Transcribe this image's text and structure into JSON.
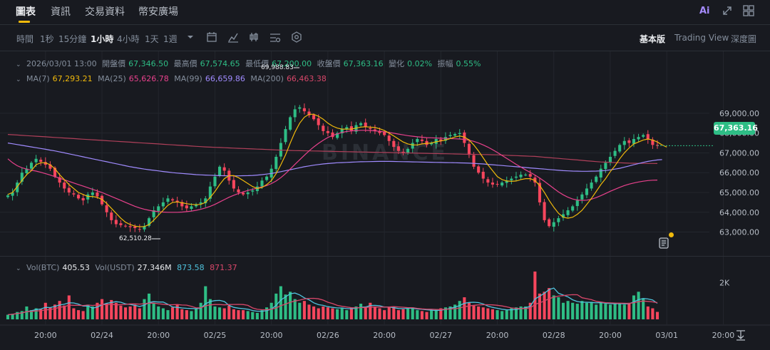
{
  "tabs": [
    {
      "label": "圖表",
      "active": true
    },
    {
      "label": "資訊",
      "active": false
    },
    {
      "label": "交易資料",
      "active": false
    },
    {
      "label": "幣安廣場",
      "active": false
    }
  ],
  "header_icons": {
    "ai_label": "Ai"
  },
  "timeframes": [
    {
      "label": "時間",
      "active": false
    },
    {
      "label": "1秒",
      "active": false
    },
    {
      "label": "15分鐘",
      "active": false
    },
    {
      "label": "1小時",
      "active": true
    },
    {
      "label": "4小時",
      "active": false
    },
    {
      "label": "1天",
      "active": false
    },
    {
      "label": "1週",
      "active": false
    }
  ],
  "views": [
    {
      "label": "基本版",
      "active": true
    },
    {
      "label": "Trading View",
      "active": false
    },
    {
      "label": "深度圖",
      "active": false
    }
  ],
  "ohlc": {
    "date": "2026/03/01 13:00",
    "open_label": "開盤價",
    "open": "67,346.50",
    "high_label": "最高價",
    "high": "67,574.65",
    "low_label": "最低價",
    "low": "67,200.00",
    "close_label": "收盤價",
    "close": "67,363.16",
    "change_label": "變化",
    "change": "0.02%",
    "amplitude_label": "振幅",
    "amplitude": "0.55%"
  },
  "ma": {
    "ma7_label": "MA(7)",
    "ma7": "67,293.21",
    "ma25_label": "MA(25)",
    "ma25": "65,626.78",
    "ma99_label": "MA(99)",
    "ma99": "66,659.86",
    "ma200_label": "MA(200)",
    "ma200": "66,463.38"
  },
  "volume": {
    "btc_label": "Vol(BTC)",
    "btc": "405.53",
    "usdt_label": "Vol(USDT)",
    "usdt": "27.346M",
    "ma1": "873.58",
    "ma2": "871.37"
  },
  "colors": {
    "up": "#2ebd85",
    "down": "#f6465d",
    "ma7": "#f0b90b",
    "ma25": "#e8418c",
    "ma99": "#a08bff",
    "ma200": "#b0405a",
    "vol_ma1": "#4fc3dd",
    "vol_ma2": "#d8476a",
    "accent": "#f0b90b"
  },
  "current_price_tag": "67,363.16",
  "annotations": {
    "high_mark": "69,988.83",
    "low_mark": "62,510.28"
  },
  "watermark": "BINANCE",
  "chart_data": {
    "type": "candlestick",
    "interval": "1h",
    "price_axis": {
      "ticks": [
        "69,000.00",
        "68,000.00",
        "67,000.00",
        "66,000.00",
        "65,000.00",
        "64,000.00",
        "63,000.00"
      ],
      "tick_values": [
        69000,
        68000,
        67000,
        66000,
        65000,
        64000,
        63000
      ],
      "range": [
        62300,
        70400
      ]
    },
    "volume_axis": {
      "ticks": [
        "2K"
      ],
      "tick_values": [
        2000
      ],
      "range": [
        0,
        3100
      ]
    },
    "time_axis": {
      "ticks": [
        "20:00",
        "02/24",
        "20:00",
        "02/25",
        "20:00",
        "02/26",
        "20:00",
        "02/27",
        "20:00",
        "02/28",
        "20:00",
        "03/01",
        "20:00"
      ],
      "tick_index": [
        8,
        20,
        32,
        44,
        56,
        68,
        80,
        92,
        104,
        116,
        128,
        140,
        152
      ]
    },
    "close": [
      64850,
      65000,
      65500,
      66000,
      66200,
      66500,
      66700,
      66550,
      66400,
      66200,
      65800,
      65500,
      65200,
      65000,
      64900,
      64700,
      64600,
      64900,
      65000,
      64800,
      64400,
      64000,
      63600,
      63400,
      63350,
      63300,
      63250,
      63200,
      63150,
      63300,
      63700,
      64100,
      64300,
      64500,
      64700,
      64600,
      64500,
      64300,
      64200,
      64300,
      64400,
      64500,
      64700,
      65300,
      65800,
      66300,
      66100,
      65600,
      65200,
      65000,
      64900,
      65000,
      65100,
      65300,
      65600,
      65800,
      66200,
      66800,
      67500,
      68200,
      68800,
      69200,
      69300,
      69100,
      68900,
      68700,
      68400,
      68100,
      68000,
      67800,
      68000,
      68200,
      68300,
      68100,
      68400,
      68500,
      68300,
      68200,
      68100,
      68000,
      67900,
      67600,
      67300,
      67100,
      67000,
      67200,
      67500,
      67700,
      67600,
      67400,
      67500,
      67700,
      67600,
      67800,
      67900,
      67950,
      68000,
      67500,
      66900,
      66300,
      66000,
      65700,
      65500,
      65400,
      65400,
      65500,
      65600,
      65700,
      65800,
      65900,
      65900,
      65800,
      65500,
      64500,
      63600,
      63300,
      63500,
      63700,
      63900,
      64100,
      64300,
      64600,
      64900,
      65200,
      65500,
      65800,
      66200,
      66500,
      66800,
      67100,
      67400,
      67600,
      67500,
      67700,
      67800,
      67900,
      67700,
      67400,
      67363
    ],
    "volume": [
      250,
      300,
      400,
      450,
      700,
      500,
      600,
      550,
      900,
      650,
      800,
      1000,
      750,
      1300,
      600,
      500,
      450,
      800,
      700,
      900,
      1100,
      850,
      1050,
      900,
      750,
      650,
      700,
      800,
      600,
      1100,
      1400,
      900,
      700,
      600,
      500,
      650,
      800,
      550,
      500,
      450,
      600,
      900,
      1800,
      1100,
      700,
      650,
      600,
      750,
      550,
      500,
      500,
      450,
      400,
      350,
      500,
      650,
      900,
      1400,
      1800,
      1350,
      1500,
      1100,
      900,
      1000,
      800,
      700,
      600,
      700,
      650,
      600,
      550,
      600,
      500,
      650,
      700,
      850,
      650,
      900,
      700,
      600,
      500,
      650,
      700,
      500,
      550,
      600,
      650,
      500,
      450,
      400,
      500,
      550,
      600,
      650,
      700,
      800,
      1000,
      1200,
      900,
      750,
      700,
      650,
      600,
      550,
      500,
      450,
      500,
      600,
      650,
      700,
      700,
      900,
      2600,
      1400,
      1500,
      1700,
      1300,
      1200,
      900,
      1000,
      900,
      850,
      1000,
      900,
      950,
      800,
      900,
      850,
      800,
      900,
      850,
      800,
      900,
      1300,
      1500,
      1150,
      700,
      600,
      405
    ],
    "ma7": [
      64900,
      65000,
      65300,
      65600,
      65900,
      66100,
      66400,
      66500,
      66500,
      66400,
      66200,
      65900,
      65650,
      65400,
      65200,
      65000,
      64900,
      64800,
      64800,
      64750,
      64650,
      64450,
      64200,
      63950,
      63700,
      63500,
      63380,
      63300,
      63270,
      63280,
      63380,
      63600,
      63850,
      64100,
      64350,
      64500,
      64520,
      64480,
      64430,
      64400,
      64380,
      64400,
      64500,
      64750,
      65050,
      65400,
      65700,
      65850,
      65850,
      65750,
      65600,
      65450,
      65300,
      65200,
      65250,
      65400,
      65600,
      65950,
      66400,
      66900,
      67500,
      68050,
      68500,
      68800,
      68950,
      68950,
      68850,
      68700,
      68500,
      68350,
      68250,
      68200,
      68200,
      68200,
      68250,
      68300,
      68320,
      68300,
      68280,
      68220,
      68130,
      68000,
      67850,
      67700,
      67550,
      67450,
      67400,
      67400,
      67450,
      67480,
      67500,
      67560,
      67600,
      67650,
      67720,
      67800,
      67850,
      67800,
      67650,
      67400,
      67100,
      66750,
      66400,
      66100,
      65800,
      65650,
      65580,
      65560,
      65580,
      65650,
      65700,
      65700,
      65600,
      65350,
      65000,
      64600,
      64250,
      63950,
      63750,
      63700,
      63750,
      63900,
      64100,
      64400,
      64700,
      65050,
      65400,
      65700,
      66050,
      66350,
      66700,
      67000,
      67250,
      67450,
      67550,
      67650,
      67700,
      67650,
      67550,
      67400,
      67293
    ],
    "ma25": [
      66700,
      66500,
      66350,
      66250,
      66180,
      66120,
      66080,
      66020,
      65950,
      65880,
      65800,
      65720,
      65640,
      65560,
      65480,
      65400,
      65320,
      65240,
      65160,
      65080,
      65000,
      64900,
      64800,
      64700,
      64600,
      64500,
      64400,
      64300,
      64220,
      64150,
      64100,
      64060,
      64030,
      64010,
      64000,
      64000,
      64000,
      64010,
      64030,
      64060,
      64100,
      64150,
      64220,
      64300,
      64400,
      64520,
      64640,
      64760,
      64860,
      64950,
      65030,
      65100,
      65160,
      65220,
      65280,
      65350,
      65450,
      65580,
      65750,
      65950,
      66180,
      66420,
      66650,
      66880,
      67100,
      67300,
      67480,
      67640,
      67780,
      67880,
      67960,
      68030,
      68080,
      68110,
      68130,
      68140,
      68140,
      68130,
      68110,
      68090,
      68060,
      68030,
      67990,
      67950,
      67910,
      67870,
      67840,
      67810,
      67790,
      67770,
      67760,
      67750,
      67740,
      67730,
      67720,
      67710,
      67700,
      67680,
      67640,
      67580,
      67500,
      67400,
      67290,
      67160,
      67020,
      66870,
      66720,
      66570,
      66420,
      66280,
      66140,
      66010,
      65880,
      65730,
      65560,
      65380,
      65200,
      65030,
      64880,
      64760,
      64670,
      64620,
      64600,
      64610,
      64660,
      64740,
      64840,
      64950,
      65060,
      65160,
      65260,
      65350,
      65420,
      65480,
      65530,
      65570,
      65600,
      65620,
      65627
    ],
    "ma99": [
      67500,
      67460,
      67420,
      67380,
      67340,
      67300,
      67260,
      67220,
      67180,
      67140,
      67100,
      67050,
      67000,
      66950,
      66900,
      66850,
      66800,
      66750,
      66700,
      66650,
      66600,
      66550,
      66500,
      66450,
      66400,
      66350,
      66300,
      66260,
      66220,
      66180,
      66150,
      66120,
      66090,
      66060,
      66030,
      66000,
      65980,
      65960,
      65940,
      65920,
      65900,
      65890,
      65880,
      65870,
      65860,
      65850,
      65845,
      65840,
      65840,
      65840,
      65845,
      65850,
      65860,
      65880,
      65900,
      65930,
      65960,
      66000,
      66050,
      66100,
      66150,
      66200,
      66250,
      66300,
      66340,
      66380,
      66410,
      66440,
      66460,
      66480,
      66500,
      66510,
      66520,
      66530,
      66540,
      66550,
      66555,
      66560,
      66565,
      66570,
      66570,
      66570,
      66565,
      66560,
      66555,
      66550,
      66545,
      66540,
      66535,
      66530,
      66525,
      66520,
      66515,
      66510,
      66505,
      66500,
      66495,
      66490,
      66480,
      66470,
      66455,
      66440,
      66420,
      66400,
      66380,
      66360,
      66340,
      66320,
      66300,
      66280,
      66260,
      66240,
      66220,
      66200,
      66180,
      66160,
      66140,
      66120,
      66100,
      66090,
      66080,
      66075,
      66070,
      66070,
      66075,
      66080,
      66090,
      66110,
      66140,
      66180,
      66220,
      66280,
      66340,
      66400,
      66460,
      66520,
      66570,
      66610,
      66640,
      66660
    ],
    "ma200": [
      67930,
      67915,
      67900,
      67885,
      67870,
      67855,
      67840,
      67825,
      67810,
      67795,
      67780,
      67765,
      67750,
      67735,
      67720,
      67705,
      67690,
      67675,
      67660,
      67645,
      67630,
      67615,
      67600,
      67585,
      67570,
      67555,
      67540,
      67525,
      67510,
      67495,
      67480,
      67465,
      67450,
      67435,
      67420,
      67405,
      67390,
      67375,
      67360,
      67345,
      67330,
      67315,
      67300,
      67290,
      67280,
      67270,
      67260,
      67250,
      67240,
      67230,
      67220,
      67210,
      67200,
      67190,
      67180,
      67170,
      67160,
      67150,
      67140,
      67130,
      67120,
      67115,
      67110,
      67105,
      67100,
      67095,
      67090,
      67085,
      67080,
      67075,
      67070,
      67065,
      67060,
      67055,
      67050,
      67045,
      67040,
      67035,
      67030,
      67025,
      67020,
      67015,
      67010,
      67005,
      67000,
      66995,
      66990,
      66985,
      66980,
      66975,
      66970,
      66965,
      66960,
      66955,
      66950,
      66945,
      66940,
      66935,
      66930,
      66925,
      66920,
      66915,
      66910,
      66905,
      66900,
      66890,
      66880,
      66870,
      66860,
      66850,
      66840,
      66830,
      66820,
      66800,
      66780,
      66760,
      66740,
      66720,
      66700,
      66680,
      66660,
      66640,
      66620,
      66600,
      66580,
      66560,
      66540,
      66530,
      66520,
      66510,
      66500,
      66490,
      66480,
      66475,
      66470,
      66468,
      66466,
      66464,
      66463
    ]
  }
}
